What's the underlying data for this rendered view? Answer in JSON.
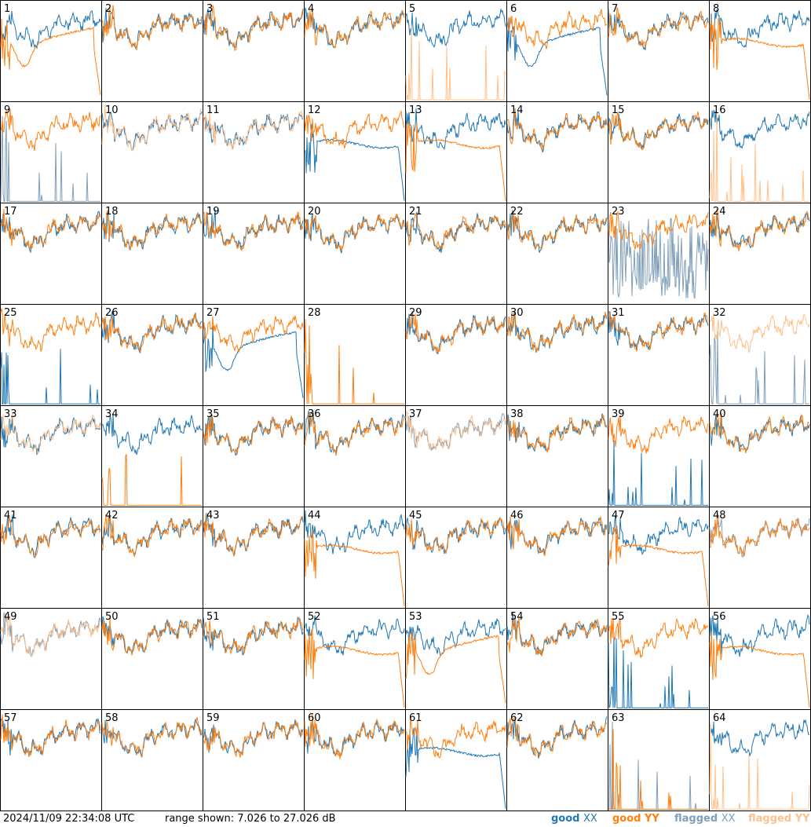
{
  "footer": {
    "timestamp": "2024/11/09 22:34:08 UTC",
    "range_text": "range shown: 7.026 to 27.026 dB"
  },
  "legend": [
    {
      "word": "good",
      "pol": "XX",
      "color": "#1f77b4"
    },
    {
      "word": "good",
      "pol": "YY",
      "color": "#ff7f0e"
    },
    {
      "word": "flagged",
      "pol": "XX",
      "color": "#7f9fbb"
    },
    {
      "word": "flagged",
      "pol": "YY",
      "color": "#ffc08a"
    }
  ],
  "chart_data": {
    "type": "line",
    "grid": {
      "rows": 8,
      "cols": 8
    },
    "ylim": [
      7.026,
      27.026
    ],
    "yunit": "dB",
    "series_names": [
      "good XX",
      "good YY",
      "flagged XX",
      "flagged YY"
    ],
    "tiles": [
      {
        "id": "1",
        "xx": "good",
        "yy": "good",
        "shape_xx": "normal",
        "shape_yy": "bandpass-dip"
      },
      {
        "id": "2",
        "xx": "good",
        "yy": "good",
        "shape_xx": "normal",
        "shape_yy": "normal"
      },
      {
        "id": "3",
        "xx": "good",
        "yy": "good",
        "shape_xx": "normal",
        "shape_yy": "normal"
      },
      {
        "id": "4",
        "xx": "good",
        "yy": "good",
        "shape_xx": "normal",
        "shape_yy": "normal"
      },
      {
        "id": "5",
        "xx": "good",
        "yy": "flagged",
        "shape_xx": "normal",
        "shape_yy": "spikes"
      },
      {
        "id": "6",
        "xx": "good",
        "yy": "good",
        "shape_xx": "bandpass-dip",
        "shape_yy": "normal"
      },
      {
        "id": "7",
        "xx": "good",
        "yy": "good",
        "shape_xx": "normal",
        "shape_yy": "normal"
      },
      {
        "id": "8",
        "xx": "good",
        "yy": "good",
        "shape_xx": "normal",
        "shape_yy": "bandpass-flat"
      },
      {
        "id": "9",
        "xx": "flagged",
        "yy": "good",
        "shape_xx": "spikes",
        "shape_yy": "normal"
      },
      {
        "id": "10",
        "xx": "good",
        "yy": "flagged",
        "shape_xx": "normal",
        "shape_yy": "normal"
      },
      {
        "id": "11",
        "xx": "good",
        "yy": "flagged",
        "shape_xx": "normal",
        "shape_yy": "normal"
      },
      {
        "id": "12",
        "xx": "good",
        "yy": "good",
        "shape_xx": "bandpass-flat",
        "shape_yy": "normal"
      },
      {
        "id": "13",
        "xx": "good",
        "yy": "good",
        "shape_xx": "normal",
        "shape_yy": "bandpass-flat"
      },
      {
        "id": "14",
        "xx": "good",
        "yy": "good",
        "shape_xx": "normal",
        "shape_yy": "normal"
      },
      {
        "id": "15",
        "xx": "good",
        "yy": "good",
        "shape_xx": "normal",
        "shape_yy": "normal"
      },
      {
        "id": "16",
        "xx": "good",
        "yy": "flagged",
        "shape_xx": "normal",
        "shape_yy": "spikes"
      },
      {
        "id": "17",
        "xx": "good",
        "yy": "good",
        "shape_xx": "normal",
        "shape_yy": "normal"
      },
      {
        "id": "18",
        "xx": "good",
        "yy": "good",
        "shape_xx": "normal",
        "shape_yy": "normal"
      },
      {
        "id": "19",
        "xx": "good",
        "yy": "good",
        "shape_xx": "normal",
        "shape_yy": "normal"
      },
      {
        "id": "20",
        "xx": "good",
        "yy": "good",
        "shape_xx": "normal",
        "shape_yy": "normal"
      },
      {
        "id": "21",
        "xx": "good",
        "yy": "good",
        "shape_xx": "normal",
        "shape_yy": "normal"
      },
      {
        "id": "22",
        "xx": "good",
        "yy": "good",
        "shape_xx": "normal",
        "shape_yy": "normal"
      },
      {
        "id": "23",
        "xx": "flagged",
        "yy": "good",
        "shape_xx": "noise",
        "shape_yy": "normal"
      },
      {
        "id": "24",
        "xx": "good",
        "yy": "good",
        "shape_xx": "normal",
        "shape_yy": "normal"
      },
      {
        "id": "25",
        "xx": "good",
        "yy": "good",
        "shape_xx": "spikes",
        "shape_yy": "normal"
      },
      {
        "id": "26",
        "xx": "good",
        "yy": "good",
        "shape_xx": "normal",
        "shape_yy": "normal"
      },
      {
        "id": "27",
        "xx": "good",
        "yy": "good",
        "shape_xx": "bandpass-dip",
        "shape_yy": "normal"
      },
      {
        "id": "28",
        "xx": "good",
        "yy": "good",
        "shape_xx": "none",
        "shape_yy": "spikes"
      },
      {
        "id": "29",
        "xx": "good",
        "yy": "good",
        "shape_xx": "normal",
        "shape_yy": "normal"
      },
      {
        "id": "30",
        "xx": "good",
        "yy": "good",
        "shape_xx": "normal",
        "shape_yy": "normal"
      },
      {
        "id": "31",
        "xx": "good",
        "yy": "good",
        "shape_xx": "normal",
        "shape_yy": "normal"
      },
      {
        "id": "32",
        "xx": "flagged",
        "yy": "flagged",
        "shape_xx": "spikes",
        "shape_yy": "normal"
      },
      {
        "id": "33",
        "xx": "good",
        "yy": "flagged",
        "shape_xx": "normal",
        "shape_yy": "normal"
      },
      {
        "id": "34",
        "xx": "good",
        "yy": "good",
        "shape_xx": "normal",
        "shape_yy": "spikes"
      },
      {
        "id": "35",
        "xx": "good",
        "yy": "good",
        "shape_xx": "normal",
        "shape_yy": "normal"
      },
      {
        "id": "36",
        "xx": "good",
        "yy": "good",
        "shape_xx": "normal",
        "shape_yy": "normal"
      },
      {
        "id": "37",
        "xx": "flagged",
        "yy": "flagged",
        "shape_xx": "normal",
        "shape_yy": "normal"
      },
      {
        "id": "38",
        "xx": "good",
        "yy": "good",
        "shape_xx": "normal",
        "shape_yy": "normal"
      },
      {
        "id": "39",
        "xx": "good",
        "yy": "good",
        "shape_xx": "spikes",
        "shape_yy": "normal"
      },
      {
        "id": "40",
        "xx": "good",
        "yy": "good",
        "shape_xx": "normal",
        "shape_yy": "normal"
      },
      {
        "id": "41",
        "xx": "good",
        "yy": "good",
        "shape_xx": "normal",
        "shape_yy": "normal"
      },
      {
        "id": "42",
        "xx": "good",
        "yy": "good",
        "shape_xx": "normal",
        "shape_yy": "normal"
      },
      {
        "id": "43",
        "xx": "good",
        "yy": "good",
        "shape_xx": "normal",
        "shape_yy": "normal"
      },
      {
        "id": "44",
        "xx": "good",
        "yy": "good",
        "shape_xx": "normal",
        "shape_yy": "bandpass-flat"
      },
      {
        "id": "45",
        "xx": "good",
        "yy": "good",
        "shape_xx": "normal",
        "shape_yy": "normal"
      },
      {
        "id": "46",
        "xx": "good",
        "yy": "good",
        "shape_xx": "normal",
        "shape_yy": "normal"
      },
      {
        "id": "47",
        "xx": "good",
        "yy": "good",
        "shape_xx": "normal",
        "shape_yy": "bandpass-flat"
      },
      {
        "id": "48",
        "xx": "flagged",
        "yy": "good",
        "shape_xx": "normal",
        "shape_yy": "normal"
      },
      {
        "id": "49",
        "xx": "flagged",
        "yy": "flagged",
        "shape_xx": "normal",
        "shape_yy": "normal"
      },
      {
        "id": "50",
        "xx": "good",
        "yy": "good",
        "shape_xx": "normal",
        "shape_yy": "normal"
      },
      {
        "id": "51",
        "xx": "good",
        "yy": "good",
        "shape_xx": "normal",
        "shape_yy": "normal"
      },
      {
        "id": "52",
        "xx": "good",
        "yy": "good",
        "shape_xx": "normal",
        "shape_yy": "bandpass-flat"
      },
      {
        "id": "53",
        "xx": "good",
        "yy": "good",
        "shape_xx": "normal",
        "shape_yy": "bandpass-dip"
      },
      {
        "id": "54",
        "xx": "good",
        "yy": "good",
        "shape_xx": "normal",
        "shape_yy": "normal"
      },
      {
        "id": "55",
        "xx": "good",
        "yy": "good",
        "shape_xx": "spikes",
        "shape_yy": "normal"
      },
      {
        "id": "56",
        "xx": "good",
        "yy": "good",
        "shape_xx": "normal",
        "shape_yy": "bandpass-flat"
      },
      {
        "id": "57",
        "xx": "good",
        "yy": "good",
        "shape_xx": "normal",
        "shape_yy": "normal"
      },
      {
        "id": "58",
        "xx": "good",
        "yy": "good",
        "shape_xx": "normal",
        "shape_yy": "normal"
      },
      {
        "id": "59",
        "xx": "good",
        "yy": "good",
        "shape_xx": "normal",
        "shape_yy": "normal"
      },
      {
        "id": "60",
        "xx": "good",
        "yy": "good",
        "shape_xx": "normal",
        "shape_yy": "normal"
      },
      {
        "id": "61",
        "xx": "good",
        "yy": "good",
        "shape_xx": "bandpass-flat",
        "shape_yy": "normal"
      },
      {
        "id": "62",
        "xx": "good",
        "yy": "good",
        "shape_xx": "normal",
        "shape_yy": "normal"
      },
      {
        "id": "63",
        "xx": "flagged",
        "yy": "good",
        "shape_xx": "spikes",
        "shape_yy": "spikes"
      },
      {
        "id": "64",
        "xx": "good",
        "yy": "flagged",
        "shape_xx": "normal",
        "shape_yy": "spikes"
      }
    ]
  }
}
